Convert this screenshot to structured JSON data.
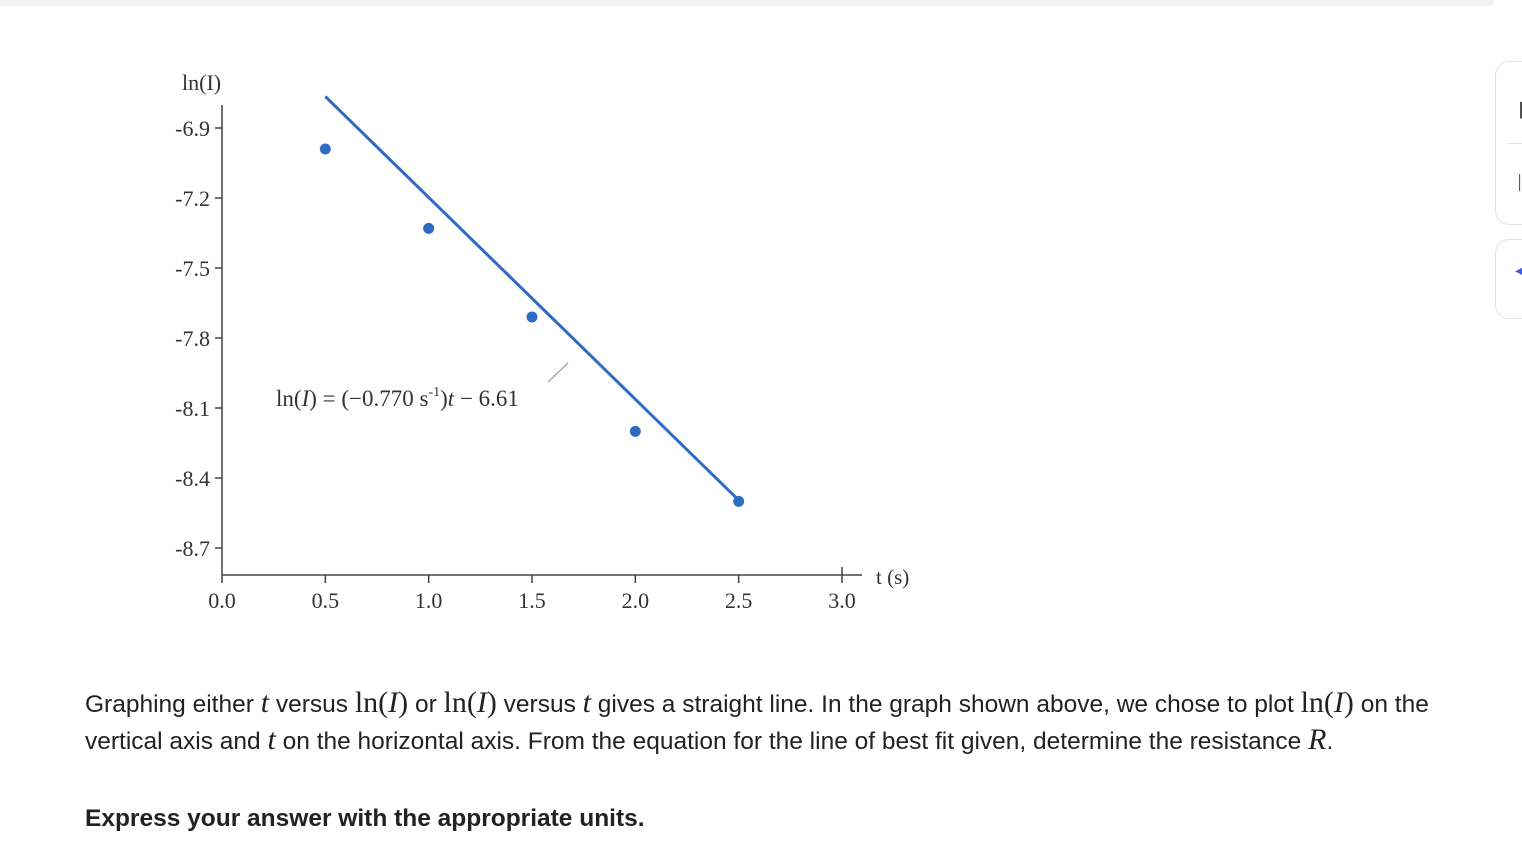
{
  "colors": {
    "line": "#2e6cc4",
    "axis": "#444444"
  },
  "chart_data": {
    "type": "scatter",
    "ylabel": "ln(I)",
    "xlabel": "t (s)",
    "x_ticks": [
      "0.0",
      "0.5",
      "1.0",
      "1.5",
      "2.0",
      "2.5",
      "3.0"
    ],
    "y_ticks": [
      "-6.9",
      "-7.2",
      "-7.5",
      "-7.8",
      "-8.1",
      "-8.4",
      "-8.7"
    ],
    "xlim": [
      0.0,
      3.0
    ],
    "ylim": [
      -8.7,
      -6.9
    ],
    "points": [
      {
        "x": 0.5,
        "y": -6.99
      },
      {
        "x": 1.0,
        "y": -7.33
      },
      {
        "x": 1.5,
        "y": -7.71
      },
      {
        "x": 2.0,
        "y": -8.2
      },
      {
        "x": 2.5,
        "y": -8.5
      }
    ],
    "fit": {
      "slope": -0.77,
      "intercept": -6.61,
      "x_start": 0.5,
      "x_end": 2.5
    },
    "equation": {
      "lhs": "ln(",
      "var": "I",
      "mid": ") = (−0.770 s",
      "sup": "-1",
      "rhs_open": ")",
      "t": "t",
      "rhs": " − 6.61"
    }
  },
  "problem": {
    "p1": "Graphing either ",
    "t1": "t",
    "p2": " versus ",
    "ln1": "ln(",
    "i1": "I",
    "ln1c": ")",
    "p3": " or ",
    "ln2": "ln(",
    "i2": "I",
    "ln2c": ")",
    "p4": " versus ",
    "t2": "t",
    "p5": " gives a straight line. In the graph shown above, we chose to plot ",
    "ln3": "ln(",
    "i3": "I",
    "ln3c": ")",
    "p6": " on the vertical axis and ",
    "t3": "t",
    "p7": " on the horizontal axis. From the equation for the line of best fit given, determine the resistance ",
    "r": "R",
    "p8": "."
  },
  "instruction": "Express your answer with the appropriate units."
}
